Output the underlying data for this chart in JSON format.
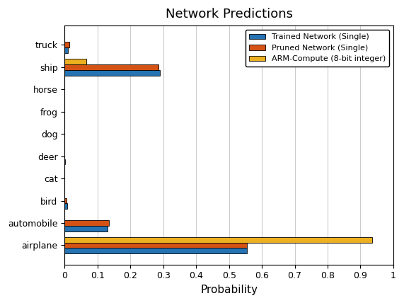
{
  "title": "Network Predictions",
  "xlabel": "Probability",
  "categories": [
    "truck",
    "ship",
    "horse",
    "frog",
    "dog",
    "deer",
    "cat",
    "bird",
    "automobile",
    "airplane"
  ],
  "series": {
    "Trained Network (Single)": [
      0.01,
      0.29,
      0.0,
      0.0,
      0.0,
      0.001,
      0.0,
      0.008,
      0.13,
      0.555
    ],
    "Pruned Network (Single)": [
      0.015,
      0.285,
      0.0,
      0.0,
      0.0,
      0.0,
      0.0,
      0.005,
      0.135,
      0.555
    ],
    "ARM-Compute (8-bit integer)": [
      0.0,
      0.065,
      0.0,
      0.0,
      0.0,
      0.0,
      0.0,
      0.0,
      0.0,
      0.935
    ]
  },
  "colors": {
    "Trained Network (Single)": "#2673B3",
    "Pruned Network (Single)": "#D55215",
    "ARM-Compute (8-bit integer)": "#EDB021"
  },
  "xlim": [
    0,
    1.0
  ],
  "xticks": [
    0,
    0.1,
    0.2,
    0.3,
    0.4,
    0.5,
    0.6,
    0.7,
    0.8,
    0.9,
    1.0
  ],
  "xtick_labels": [
    "0",
    "0.1",
    "0.2",
    "0.3",
    "0.4",
    "0.5",
    "0.6",
    "0.7",
    "0.8",
    "0.9",
    "1"
  ],
  "legend_loc": "upper right",
  "background_color": "#ffffff",
  "figsize": [
    5.71,
    4.28
  ],
  "dpi": 100
}
